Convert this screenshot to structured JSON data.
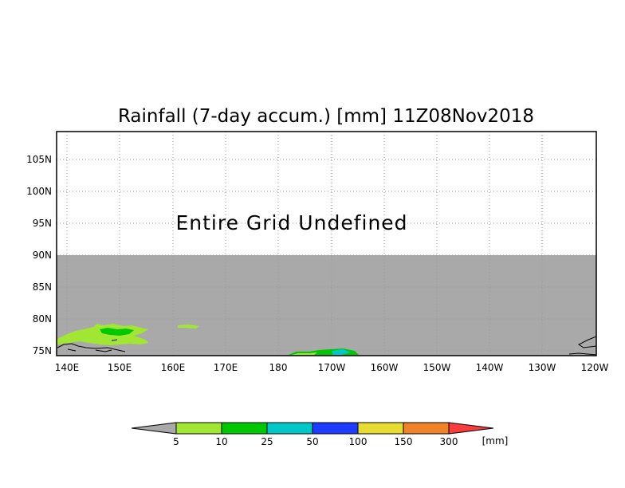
{
  "title": "Rainfall (7-day accum.) [mm] 11Z08Nov2018",
  "overlay_message": "Entire Grid Undefined",
  "colors": {
    "undefined_region": "#a9a9a9",
    "grid_line": "#999999",
    "frame": "#000000",
    "rain_light_green": "#a0e632",
    "rain_green": "#00c800",
    "rain_cyan": "#00c8c8",
    "rain_blue": "#1e3cff",
    "rain_yellow": "#e6dc32",
    "rain_orange": "#f08228",
    "rain_red": "#fa3c3c"
  },
  "map": {
    "lat_labels": [
      "105N",
      "100N",
      "95N",
      "90N",
      "85N",
      "80N",
      "75N"
    ],
    "lon_labels": [
      "140E",
      "150E",
      "160E",
      "170E",
      "180",
      "170W",
      "160W",
      "150W",
      "140W",
      "130W",
      "120W"
    ]
  },
  "colorbar": {
    "labels": [
      "5",
      "10",
      "25",
      "50",
      "100",
      "150",
      "300"
    ],
    "unit": "[mm]",
    "colors": [
      "#a9a9a9",
      "#a0e632",
      "#00c800",
      "#00c8c8",
      "#1e3cff",
      "#e6dc32",
      "#f08228",
      "#fa3c3c"
    ]
  }
}
